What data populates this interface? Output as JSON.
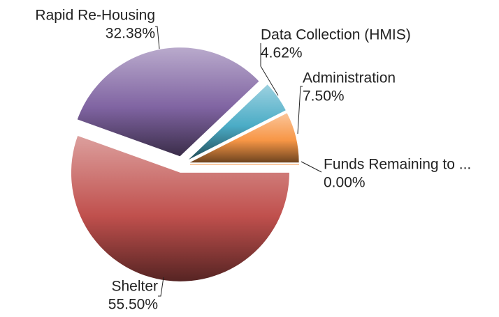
{
  "chart_data": {
    "type": "pie",
    "categories": [
      "Funds Remaining to ...",
      "Administration",
      "Data Collection (HMIS)",
      "Rapid Re-Housing",
      "Shelter"
    ],
    "values": [
      0.0,
      7.5,
      4.62,
      32.38,
      55.5
    ],
    "value_labels": [
      "0.00%",
      "7.50%",
      "4.62%",
      "32.38%",
      "55.50%"
    ],
    "colors": [
      "#f79646",
      "#f79646",
      "#4bacc6",
      "#8064a2",
      "#c0504d"
    ]
  }
}
